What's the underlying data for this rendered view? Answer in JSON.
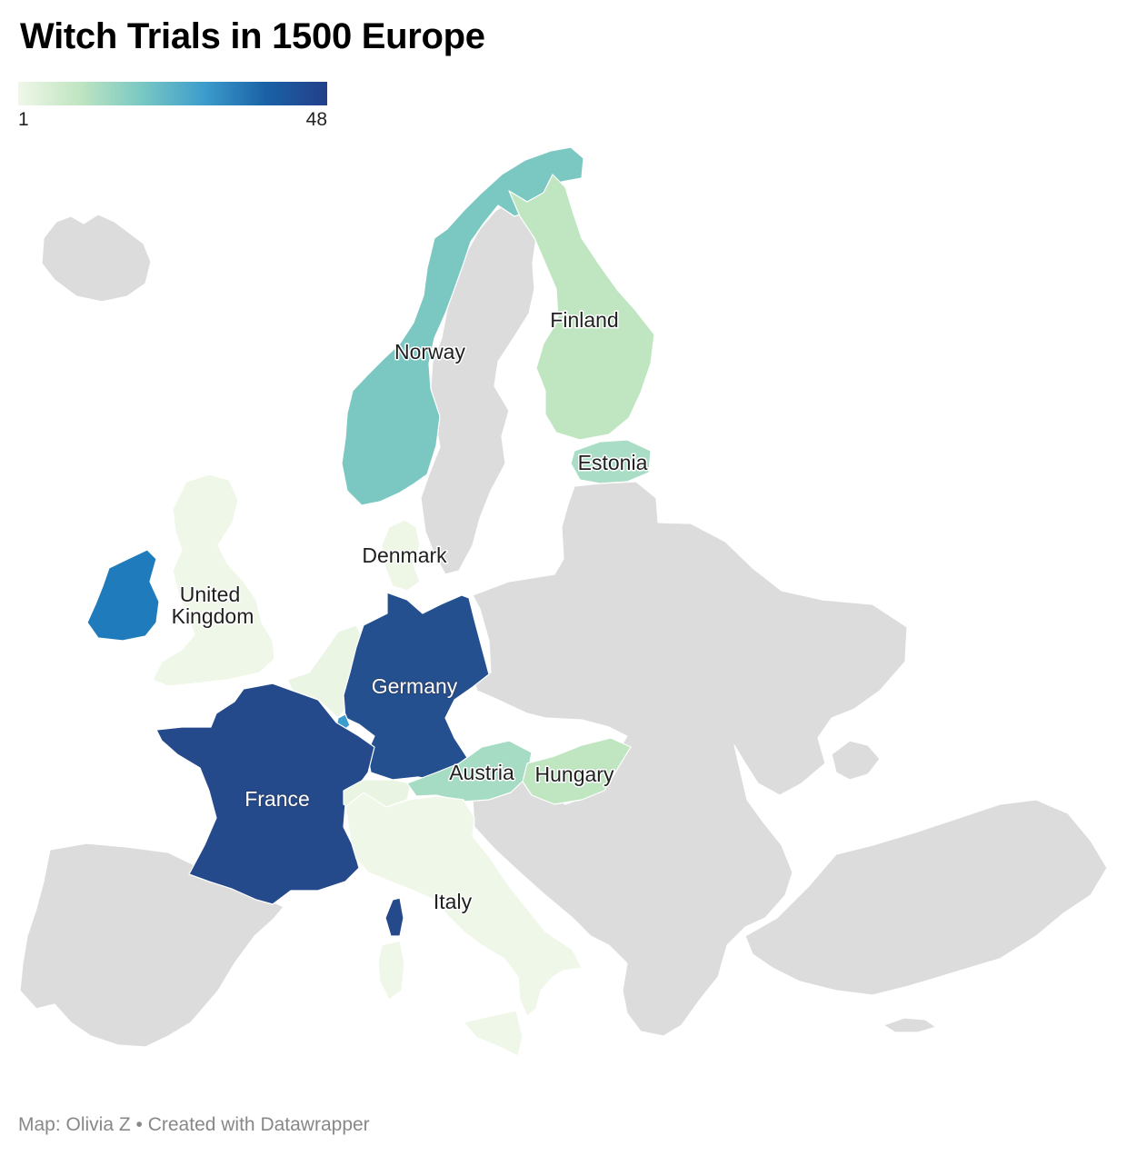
{
  "title": "Witch Trials in 1500 Europe",
  "legend": {
    "min": "1",
    "max": "48",
    "gradient_colors": [
      "#f0f7e9",
      "#bfe5c1",
      "#79c8c3",
      "#3d9dcc",
      "#1a62a6",
      "#233f8a"
    ]
  },
  "colors": {
    "no_data": "#dcdcdc",
    "border": "#ffffff",
    "france": "#254a8c",
    "germany": "#24508f",
    "ireland": "#1f7bbc",
    "norway": "#7bc8c3",
    "finland": "#bfe5c1",
    "estonia": "#a9ddc5",
    "austria": "#a6dcc4",
    "hungary": "#bfe5c1",
    "uk": "#eff7e8",
    "italy": "#eff7e8",
    "denmark": "#eef6e6",
    "benelux": "#eaf5e4",
    "switzerland": "#e9f5e2",
    "luxembourg": "#3d9dcc"
  },
  "labels": {
    "norway": "Norway",
    "finland": "Finland",
    "estonia": "Estonia",
    "denmark": "Denmark",
    "uk_line1": "United",
    "uk_line2": "Kingdom",
    "germany": "Germany",
    "austria": "Austria",
    "hungary": "Hungary",
    "france": "France",
    "italy": "Italy"
  },
  "footer": "Map: Olivia Z • Created with Datawrapper"
}
